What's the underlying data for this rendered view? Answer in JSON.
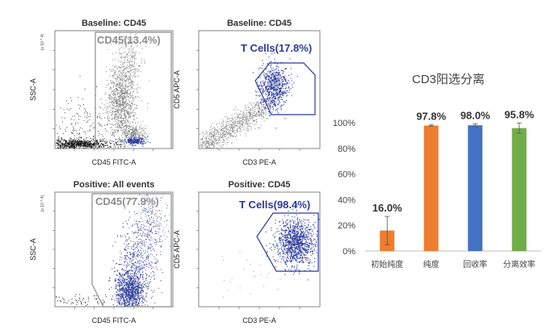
{
  "flow_panels": [
    {
      "title": "Baseline: CD45",
      "xlabel": "CD45 FITC-A",
      "ylabel": "SSC-A",
      "exp": "(x 10 ^ 4)",
      "gate_label": "CD45(13.4%)"
    },
    {
      "title": "Baseline: CD45",
      "xlabel": "CD3 PE-A",
      "ylabel": "CD5 APC-A",
      "gate_label": "T Cells(17.8%)"
    },
    {
      "title": "Positive: All events",
      "xlabel": "CD45 FITC-A",
      "ylabel": "SSC-A",
      "exp": "(x 10 ^ 4)",
      "gate_label": "CD45(77.9%)"
    },
    {
      "title": "Positive: CD45",
      "xlabel": "CD3 PE-A",
      "ylabel": "CD5 APC-A",
      "gate_label": "T Cells(98.4%)"
    }
  ],
  "colors": {
    "grey": "#8c8c8c",
    "blue": "#2b3a9b",
    "black": "#111111"
  },
  "chart_data": {
    "type": "bar",
    "title": "CD3阳选分离",
    "categories": [
      "初始纯度",
      "纯度",
      "回收率",
      "分离效率"
    ],
    "values": [
      16.0,
      97.8,
      98.0,
      95.8
    ],
    "value_labels": [
      "16.0%",
      "97.8%",
      "98.0%",
      "95.8%"
    ],
    "error": [
      11,
      0.5,
      1.0,
      4.0
    ],
    "colors": [
      "#ed7d31",
      "#ed7d31",
      "#4472c4",
      "#70ad47"
    ],
    "ylim": [
      0,
      100
    ],
    "yticks": [
      "0%",
      "20%",
      "40%",
      "60%",
      "80%",
      "100%"
    ],
    "grid": false
  }
}
